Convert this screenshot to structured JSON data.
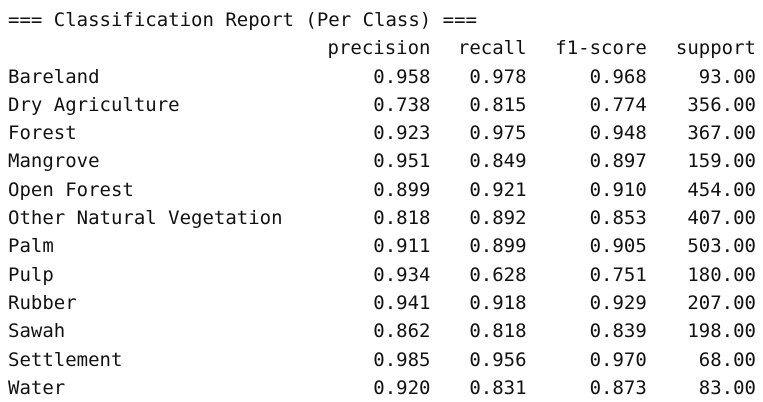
{
  "report": {
    "title": "=== Classification Report (Per Class) ===",
    "columns": [
      "precision",
      "recall",
      "f1-score",
      "support"
    ],
    "rows": [
      {
        "label": "Bareland",
        "precision": "0.958",
        "recall": "0.978",
        "f1": "0.968",
        "support": "93.00"
      },
      {
        "label": "Dry Agriculture",
        "precision": "0.738",
        "recall": "0.815",
        "f1": "0.774",
        "support": "356.00"
      },
      {
        "label": "Forest",
        "precision": "0.923",
        "recall": "0.975",
        "f1": "0.948",
        "support": "367.00"
      },
      {
        "label": "Mangrove",
        "precision": "0.951",
        "recall": "0.849",
        "f1": "0.897",
        "support": "159.00"
      },
      {
        "label": "Open Forest",
        "precision": "0.899",
        "recall": "0.921",
        "f1": "0.910",
        "support": "454.00"
      },
      {
        "label": "Other Natural Vegetation",
        "precision": "0.818",
        "recall": "0.892",
        "f1": "0.853",
        "support": "407.00"
      },
      {
        "label": "Palm",
        "precision": "0.911",
        "recall": "0.899",
        "f1": "0.905",
        "support": "503.00"
      },
      {
        "label": "Pulp",
        "precision": "0.934",
        "recall": "0.628",
        "f1": "0.751",
        "support": "180.00"
      },
      {
        "label": "Rubber",
        "precision": "0.941",
        "recall": "0.918",
        "f1": "0.929",
        "support": "207.00"
      },
      {
        "label": "Sawah",
        "precision": "0.862",
        "recall": "0.818",
        "f1": "0.839",
        "support": "198.00"
      },
      {
        "label": "Settlement",
        "precision": "0.985",
        "recall": "0.956",
        "f1": "0.970",
        "support": "68.00"
      },
      {
        "label": "Water",
        "precision": "0.920",
        "recall": "0.831",
        "f1": "0.873",
        "support": "83.00"
      }
    ]
  }
}
